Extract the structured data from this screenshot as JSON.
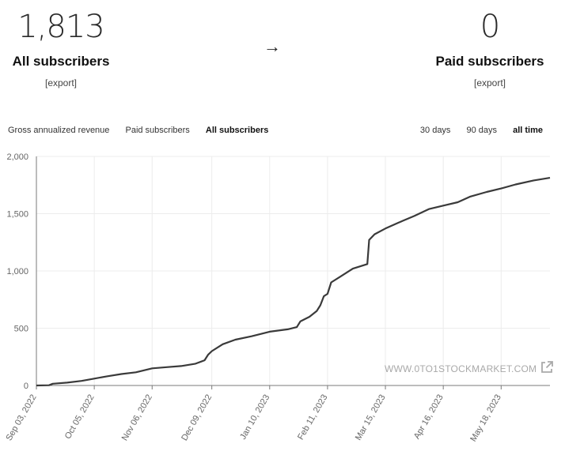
{
  "header": {
    "all_subscribers": {
      "value": "1,813",
      "label": "All subscribers",
      "export_label": "[export]"
    },
    "arrow": "→",
    "paid_subscribers": {
      "value": "0",
      "label": "Paid subscribers",
      "export_label": "[export]"
    }
  },
  "tabs": {
    "metrics": [
      {
        "label": "Gross annualized revenue",
        "active": false
      },
      {
        "label": "Paid subscribers",
        "active": false
      },
      {
        "label": "All subscribers",
        "active": true
      }
    ],
    "ranges": [
      {
        "label": "30 days",
        "active": false
      },
      {
        "label": "90 days",
        "active": false
      },
      {
        "label": "all time",
        "active": true
      }
    ]
  },
  "watermark": {
    "text": "WWW.0TO1STOCKMARKET.COM",
    "icon": "external-link-icon"
  },
  "colors": {
    "line": "#3a3a3a",
    "grid": "#ececec",
    "axis": "#7a7a7a",
    "tick_label": "#666666"
  },
  "chart_data": {
    "type": "line",
    "title": "",
    "xlabel": "",
    "ylabel": "",
    "x_ticks": [
      "Sep 03, 2022",
      "Oct 05, 2022",
      "Nov 06, 2022",
      "Dec 09, 2022",
      "Jan 10, 2023",
      "Feb 11, 2023",
      "Mar 15, 2023",
      "Apr 16, 2023",
      "May 18, 2023"
    ],
    "y_ticks": [
      "0",
      "500",
      "1,000",
      "1,500",
      "2,000"
    ],
    "ylim": [
      0,
      2000
    ],
    "xlim": [
      "2022-09-03",
      "2023-06-14"
    ],
    "grid": true,
    "series": [
      {
        "x": [
          "2022-09-03",
          "2022-09-10",
          "2022-09-12",
          "2022-09-20",
          "2022-09-28",
          "2022-10-05",
          "2022-10-12",
          "2022-10-20",
          "2022-10-28",
          "2022-11-06",
          "2022-11-14",
          "2022-11-22",
          "2022-11-30",
          "2022-12-05",
          "2022-12-07",
          "2022-12-09",
          "2022-12-15",
          "2022-12-22",
          "2022-12-31",
          "2023-01-10",
          "2023-01-20",
          "2023-01-25",
          "2023-01-27",
          "2023-02-01",
          "2023-02-05",
          "2023-02-07",
          "2023-02-09",
          "2023-02-11",
          "2023-02-13",
          "2023-02-18",
          "2023-02-25",
          "2023-03-05",
          "2023-03-06",
          "2023-03-09",
          "2023-03-15",
          "2023-03-22",
          "2023-03-31",
          "2023-04-08",
          "2023-04-16",
          "2023-04-24",
          "2023-05-01",
          "2023-05-10",
          "2023-05-18",
          "2023-05-26",
          "2023-06-05",
          "2023-06-14"
        ],
        "y": [
          0,
          2,
          15,
          25,
          40,
          60,
          80,
          100,
          115,
          150,
          160,
          170,
          190,
          220,
          270,
          300,
          360,
          400,
          430,
          470,
          490,
          510,
          560,
          600,
          650,
          700,
          780,
          800,
          900,
          950,
          1020,
          1060,
          1270,
          1320,
          1370,
          1420,
          1480,
          1540,
          1570,
          1600,
          1650,
          1690,
          1720,
          1755,
          1790,
          1813
        ]
      }
    ]
  }
}
